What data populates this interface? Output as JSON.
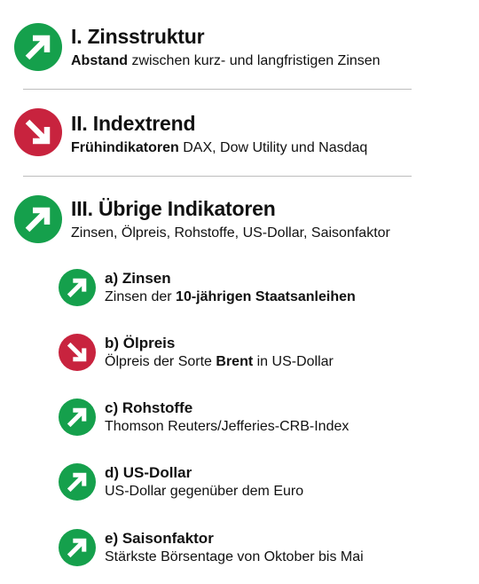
{
  "colors": {
    "up": "#15a04c",
    "down": "#c8233e",
    "arrow": "#ffffff"
  },
  "sections": [
    {
      "title": "I. Zinsstruktur",
      "icon": "arrow-up-right-icon",
      "subtitle_bold": "Abstand",
      "subtitle_rest": " zwischen kurz- und langfristigen Zinsen"
    },
    {
      "title": "II. Indextrend",
      "icon": "arrow-down-right-icon",
      "subtitle_bold": "Frühindikatoren",
      "subtitle_rest": " DAX, Dow Utility und Nasdaq"
    },
    {
      "title": "III. Übrige Indikatoren",
      "icon": "arrow-up-right-icon",
      "subtitle": "Zinsen, Ölpreis, Rohstoffe, US-Dollar, Saisonfaktor"
    }
  ],
  "indicators": [
    {
      "title": "a) Zinsen",
      "icon": "arrow-up-right-icon",
      "sub_pre": "Zinsen der ",
      "sub_bold": "10-jährigen Staatsanleihen",
      "sub_post": ""
    },
    {
      "title": "b) Ölpreis",
      "icon": "arrow-down-right-icon",
      "sub_pre": "Ölpreis der Sorte ",
      "sub_bold": "Brent",
      "sub_post": " in US-Dollar"
    },
    {
      "title": "c) Rohstoffe",
      "icon": "arrow-up-right-icon",
      "subtitle": "Thomson Reuters/Jefferies-CRB-Index"
    },
    {
      "title": "d) US-Dollar",
      "icon": "arrow-up-right-icon",
      "subtitle": "US-Dollar gegenüber dem Euro"
    },
    {
      "title": "e) Saisonfaktor",
      "icon": "arrow-up-right-icon",
      "subtitle": "Stärkste Börsentage von Oktober bis Mai"
    }
  ]
}
